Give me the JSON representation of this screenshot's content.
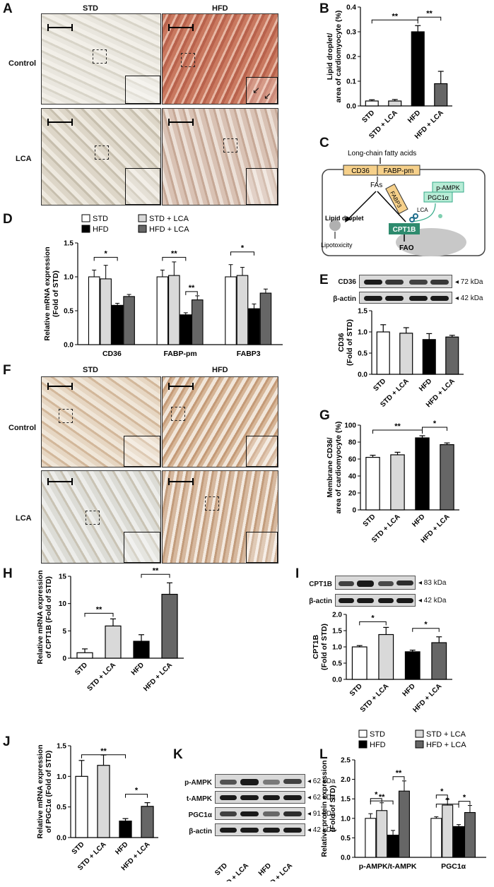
{
  "panels": {
    "A": {
      "label": "A",
      "col_std": "STD",
      "col_hfd": "HFD",
      "row_control": "Control",
      "row_lca": "LCA"
    },
    "B": {
      "label": "B"
    },
    "C": {
      "label": "C",
      "fatty_acids": "Long-chain fatty acids",
      "cd36": "CD36",
      "fabppm": "FABP-pm",
      "fas": "FAs",
      "fabp3": "FABP3",
      "lipid_droplet": "Lipid droplet",
      "lipotoxicity": "Lipotoxicity",
      "lca": "LCA",
      "pampk": "p-AMPK",
      "pgc1a": "PGC1α",
      "cpt1b": "CPT1B",
      "fao": "FAO"
    },
    "D": {
      "label": "D"
    },
    "E": {
      "label": "E",
      "blot_rows": [
        {
          "name": "CD36",
          "kda": "◂ 72 kDa"
        },
        {
          "name": "β-actin",
          "kda": "◂ 42 kDa"
        }
      ]
    },
    "F": {
      "label": "F",
      "col_std": "STD",
      "col_hfd": "HFD",
      "row_control": "Control",
      "row_lca": "LCA"
    },
    "G": {
      "label": "G"
    },
    "H": {
      "label": "H"
    },
    "I": {
      "label": "I",
      "blot_rows": [
        {
          "name": "CPT1B",
          "kda": "◂ 83 kDa"
        },
        {
          "name": "β-actin",
          "kda": "◂ 42 kDa"
        }
      ]
    },
    "J": {
      "label": "J"
    },
    "K": {
      "label": "K",
      "blot_rows": [
        {
          "name": "p-AMPK",
          "kda": "◂ 62 kDa"
        },
        {
          "name": "t-AMPK",
          "kda": "◂ 62 kDa"
        },
        {
          "name": "PGC1α",
          "kda": "◂ 91 kDa"
        },
        {
          "name": "β-actin",
          "kda": "◂ 42 kDa"
        }
      ],
      "lanes": [
        "STD",
        "STD + LCA",
        "HFD",
        "HFD + LCA"
      ]
    },
    "L": {
      "label": "L"
    }
  },
  "colors": {
    "std": "#ffffff",
    "std_lca": "#d9d9d9",
    "hfd": "#000000",
    "hfd_lca": "#666666",
    "cpt1b_box": "#2e8b6e",
    "ampk_box": "#b8ecd6",
    "transporter": "#f6d08a"
  },
  "chart_data": [
    {
      "id": "B",
      "type": "bar",
      "ylabel": "Lipid droplet/\narea of cardiomyocyte (%)",
      "ylim": [
        0,
        0.4
      ],
      "yticks": [
        0.0,
        0.1,
        0.2,
        0.3,
        0.4
      ],
      "categories": [
        "STD",
        "STD + LCA",
        "HFD",
        "HFD + LCA"
      ],
      "values": [
        0.02,
        0.02,
        0.3,
        0.09
      ],
      "errors": [
        0.005,
        0.006,
        0.025,
        0.05
      ],
      "sig": [
        {
          "from": 0,
          "to": 2,
          "label": "**"
        },
        {
          "from": 2,
          "to": 3,
          "label": "**"
        }
      ]
    },
    {
      "id": "D",
      "type": "bar",
      "ylabel": "Relative mRNA expression\n(Fold of STD)",
      "ylim": [
        0,
        1.5
      ],
      "yticks": [
        0.0,
        0.5,
        1.0,
        1.5
      ],
      "groups": [
        "CD36",
        "FABP-pm",
        "FABP3"
      ],
      "legend": [
        "STD",
        "STD + LCA",
        "HFD",
        "HFD + LCA"
      ],
      "series": [
        {
          "name": "STD",
          "values": [
            1.0,
            1.0,
            1.0
          ],
          "errors": [
            0.1,
            0.1,
            0.18
          ]
        },
        {
          "name": "STD + LCA",
          "values": [
            0.97,
            1.02,
            1.02
          ],
          "errors": [
            0.2,
            0.2,
            0.12
          ]
        },
        {
          "name": "HFD",
          "values": [
            0.58,
            0.44,
            0.53
          ],
          "errors": [
            0.03,
            0.03,
            0.07
          ]
        },
        {
          "name": "HFD + LCA",
          "values": [
            0.71,
            0.66,
            0.76
          ],
          "errors": [
            0.03,
            0.06,
            0.06
          ]
        }
      ],
      "sig": [
        {
          "group": 0,
          "from": 0,
          "to": 2,
          "label": "*"
        },
        {
          "group": 1,
          "from": 0,
          "to": 2,
          "label": "**"
        },
        {
          "group": 1,
          "from": 2,
          "to": 3,
          "label": "**"
        },
        {
          "group": 2,
          "from": 0,
          "to": 2,
          "label": "*"
        }
      ]
    },
    {
      "id": "E",
      "type": "bar",
      "ylabel": "CD36\n(Fold of STD)",
      "ylim": [
        0,
        1.5
      ],
      "yticks": [
        0.0,
        0.5,
        1.0,
        1.5
      ],
      "categories": [
        "STD",
        "STD + LCA",
        "HFD",
        "HFD + LCA"
      ],
      "values": [
        1.0,
        0.97,
        0.82,
        0.88
      ],
      "errors": [
        0.17,
        0.13,
        0.14,
        0.04
      ],
      "sig": []
    },
    {
      "id": "G",
      "type": "bar",
      "ylabel": "Membrane CD36/\narea of cardiomyocyte (%)",
      "ylim": [
        0,
        100
      ],
      "yticks": [
        0,
        20,
        40,
        60,
        80,
        100
      ],
      "categories": [
        "STD",
        "STD + LCA",
        "HFD",
        "HFD + LCA"
      ],
      "values": [
        62,
        65,
        85,
        77
      ],
      "errors": [
        2.5,
        3,
        2.5,
        2
      ],
      "sig": [
        {
          "from": 0,
          "to": 2,
          "label": "**"
        },
        {
          "from": 2,
          "to": 3,
          "label": "*"
        }
      ]
    },
    {
      "id": "H",
      "type": "bar",
      "ylabel": "Relative mRNA expression\nof CPT1B (Fold of STD)",
      "ylim": [
        0,
        15
      ],
      "yticks": [
        0,
        5,
        10,
        15
      ],
      "categories": [
        "STD",
        "STD + LCA",
        "HFD",
        "HFD + LCA"
      ],
      "values": [
        1.0,
        5.9,
        3.1,
        11.7
      ],
      "errors": [
        0.7,
        1.3,
        1.2,
        2.1
      ],
      "sig": [
        {
          "from": 0,
          "to": 1,
          "label": "**"
        },
        {
          "from": 2,
          "to": 3,
          "label": "**"
        }
      ]
    },
    {
      "id": "I",
      "type": "bar",
      "ylabel": "CPT1B\n(Fold of STD)",
      "ylim": [
        0,
        2.0
      ],
      "yticks": [
        0.0,
        0.5,
        1.0,
        1.5,
        2.0
      ],
      "categories": [
        "STD",
        "STD + LCA",
        "HFD",
        "HFD + LCA"
      ],
      "values": [
        1.0,
        1.38,
        0.85,
        1.13
      ],
      "errors": [
        0.04,
        0.22,
        0.05,
        0.18
      ],
      "sig": [
        {
          "from": 0,
          "to": 1,
          "label": "*"
        },
        {
          "from": 2,
          "to": 3,
          "label": "*"
        }
      ]
    },
    {
      "id": "J",
      "type": "bar",
      "ylabel": "Relative mRNA expression\nof PGC1α (Fold of STD)",
      "ylim": [
        0,
        1.5
      ],
      "yticks": [
        0.0,
        0.5,
        1.0,
        1.5
      ],
      "categories": [
        "STD",
        "STD + LCA",
        "HFD",
        "HFD + LCA"
      ],
      "values": [
        1.0,
        1.18,
        0.27,
        0.51
      ],
      "errors": [
        0.26,
        0.17,
        0.04,
        0.06
      ],
      "sig": [
        {
          "from": 0,
          "to": 2,
          "label": "**"
        },
        {
          "from": 2,
          "to": 3,
          "label": "*"
        }
      ]
    },
    {
      "id": "L",
      "type": "bar",
      "ylabel": "Relative protein expression\n(Fold of STD)",
      "ylim": [
        0,
        2.5
      ],
      "yticks": [
        0.0,
        0.5,
        1.0,
        1.5,
        2.0,
        2.5
      ],
      "groups": [
        "p-AMPK/t-AMPK",
        "PGC1α"
      ],
      "legend": [
        "STD",
        "STD + LCA",
        "HFD",
        "HFD + LCA"
      ],
      "series": [
        {
          "name": "STD",
          "values": [
            1.0,
            1.0
          ],
          "errors": [
            0.12,
            0.04
          ]
        },
        {
          "name": "STD + LCA",
          "values": [
            1.2,
            1.34
          ],
          "errors": [
            0.2,
            0.15
          ]
        },
        {
          "name": "HFD",
          "values": [
            0.57,
            0.79
          ],
          "errors": [
            0.12,
            0.05
          ]
        },
        {
          "name": "HFD + LCA",
          "values": [
            1.7,
            1.15
          ],
          "errors": [
            0.26,
            0.18
          ]
        }
      ],
      "sig": [
        {
          "group": 0,
          "from": 0,
          "to": 1,
          "label": "*"
        },
        {
          "group": 0,
          "from": 0,
          "to": 2,
          "label": "**"
        },
        {
          "group": 0,
          "from": 2,
          "to": 3,
          "label": "**"
        },
        {
          "group": 1,
          "from": 0,
          "to": 1,
          "label": "*"
        },
        {
          "group": 1,
          "from": 0,
          "to": 2,
          "label": "*"
        },
        {
          "group": 1,
          "from": 2,
          "to": 3,
          "label": "*"
        }
      ]
    }
  ]
}
